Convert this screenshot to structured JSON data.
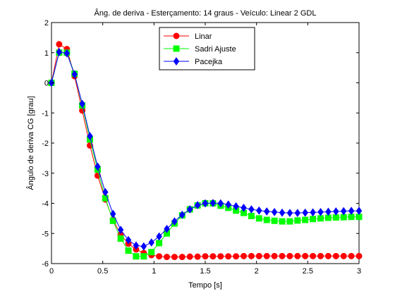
{
  "chart_data": {
    "type": "line",
    "title": "Âng. de deriva - Esterçamento: 14 graus - Veículo: Linear 2 GDL",
    "xlabel": "Tempo [s]",
    "ylabel": "Ângulo de deriva CG [grau]",
    "xlim": [
      0,
      3
    ],
    "ylim": [
      -6,
      2
    ],
    "xticks": [
      0,
      0.5,
      1,
      1.5,
      2,
      2.5,
      3
    ],
    "xtick_labels": [
      "0",
      "0.5",
      "1",
      "1.5",
      "2",
      "2.5",
      "3"
    ],
    "yticks": [
      -6,
      -5,
      -4,
      -3,
      -2,
      -1,
      0,
      1,
      2
    ],
    "ytick_labels": [
      "-6",
      "-5",
      "-4",
      "-3",
      "-2",
      "-1",
      "0",
      "1",
      "2"
    ],
    "grid": false,
    "legend_position": "top-center",
    "series": [
      {
        "name": "Linar",
        "color": "#ff0000",
        "marker": "circle",
        "x": [
          0,
          0.075,
          0.15,
          0.225,
          0.3,
          0.375,
          0.45,
          0.525,
          0.6,
          0.675,
          0.75,
          0.825,
          0.9,
          0.975,
          1.05,
          1.125,
          1.2,
          1.275,
          1.35,
          1.425,
          1.5,
          1.575,
          1.65,
          1.725,
          1.8,
          1.875,
          1.95,
          2.025,
          2.1,
          2.175,
          2.25,
          2.325,
          2.4,
          2.475,
          2.55,
          2.625,
          2.7,
          2.775,
          2.85,
          2.925,
          3.0
        ],
        "y": [
          0,
          1.28,
          1.12,
          0.22,
          -0.92,
          -2.08,
          -3.08,
          -3.87,
          -4.55,
          -5.03,
          -5.34,
          -5.53,
          -5.65,
          -5.72,
          -5.76,
          -5.78,
          -5.78,
          -5.78,
          -5.77,
          -5.77,
          -5.76,
          -5.76,
          -5.76,
          -5.76,
          -5.76,
          -5.75,
          -5.75,
          -5.75,
          -5.75,
          -5.75,
          -5.75,
          -5.75,
          -5.75,
          -5.75,
          -5.75,
          -5.75,
          -5.75,
          -5.75,
          -5.75,
          -5.75,
          -5.75
        ]
      },
      {
        "name": "Sadri Ajuste",
        "color": "#00ff00",
        "marker": "square",
        "x": [
          0,
          0.075,
          0.15,
          0.225,
          0.3,
          0.375,
          0.45,
          0.525,
          0.6,
          0.675,
          0.75,
          0.825,
          0.9,
          0.975,
          1.05,
          1.125,
          1.2,
          1.275,
          1.35,
          1.425,
          1.5,
          1.575,
          1.65,
          1.725,
          1.8,
          1.875,
          1.95,
          2.025,
          2.1,
          2.175,
          2.25,
          2.325,
          2.4,
          2.475,
          2.55,
          2.625,
          2.7,
          2.775,
          2.85,
          2.925,
          3.0
        ],
        "y": [
          0,
          1.0,
          1.0,
          0.3,
          -0.75,
          -1.88,
          -2.88,
          -3.83,
          -4.58,
          -5.17,
          -5.57,
          -5.76,
          -5.76,
          -5.62,
          -5.32,
          -5.0,
          -4.67,
          -4.4,
          -4.2,
          -4.07,
          -4.0,
          -4.0,
          -4.08,
          -4.15,
          -4.24,
          -4.32,
          -4.42,
          -4.5,
          -4.55,
          -4.58,
          -4.6,
          -4.6,
          -4.57,
          -4.55,
          -4.52,
          -4.5,
          -4.48,
          -4.47,
          -4.46,
          -4.45,
          -4.45
        ]
      },
      {
        "name": "Pacejka",
        "color": "#0000ff",
        "marker": "diamond",
        "x": [
          0,
          0.075,
          0.15,
          0.225,
          0.3,
          0.375,
          0.45,
          0.525,
          0.6,
          0.675,
          0.75,
          0.825,
          0.9,
          0.975,
          1.05,
          1.125,
          1.2,
          1.275,
          1.35,
          1.425,
          1.5,
          1.575,
          1.65,
          1.725,
          1.8,
          1.875,
          1.95,
          2.025,
          2.1,
          2.175,
          2.25,
          2.325,
          2.4,
          2.475,
          2.55,
          2.625,
          2.7,
          2.775,
          2.85,
          2.925,
          3.0
        ],
        "y": [
          0,
          1.02,
          0.98,
          0.28,
          -0.7,
          -1.77,
          -2.78,
          -3.63,
          -4.35,
          -4.88,
          -5.22,
          -5.4,
          -5.43,
          -5.3,
          -5.1,
          -4.85,
          -4.6,
          -4.38,
          -4.2,
          -4.06,
          -4.0,
          -3.99,
          -4.0,
          -4.04,
          -4.1,
          -4.15,
          -4.2,
          -4.24,
          -4.27,
          -4.29,
          -4.31,
          -4.32,
          -4.32,
          -4.31,
          -4.3,
          -4.29,
          -4.28,
          -4.27,
          -4.26,
          -4.25,
          -4.25
        ]
      }
    ]
  }
}
